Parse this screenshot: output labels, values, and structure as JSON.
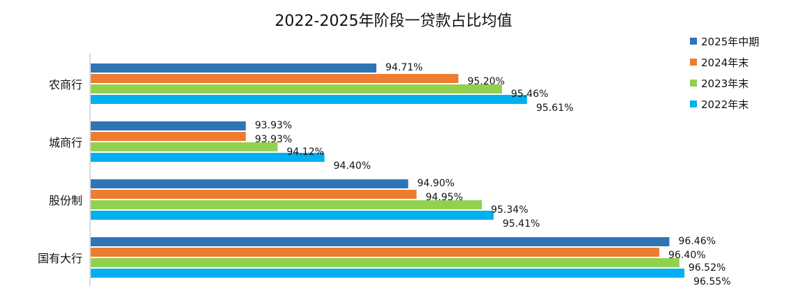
{
  "chart_data": {
    "type": "bar",
    "orientation": "horizontal",
    "title": "2022-2025年阶段一贷款占比均值",
    "xlabel": "",
    "ylabel": "",
    "xlim": [
      93.0,
      97.0
    ],
    "grid": false,
    "legend_position": "top-right",
    "categories": [
      "农商行",
      "城商行",
      "股份制",
      "国有大行"
    ],
    "series": [
      {
        "name": "2025年中期",
        "color": "#2E75B6",
        "values": [
          94.71,
          93.93,
          94.9,
          96.46
        ],
        "labels": [
          "94.71%",
          "93.93%",
          "94.90%",
          "96.46%"
        ]
      },
      {
        "name": "2024年末",
        "color": "#ED7D31",
        "values": [
          95.2,
          93.93,
          94.95,
          96.4
        ],
        "labels": [
          "95.20%",
          "93.93%",
          "94.95%",
          "96.40%"
        ]
      },
      {
        "name": "2023年末",
        "color": "#92D050",
        "values": [
          95.46,
          94.12,
          95.34,
          96.52
        ],
        "labels": [
          "95.46%",
          "94.12%",
          "95.34%",
          "96.52%"
        ]
      },
      {
        "name": "2022年末",
        "color": "#00B0F0",
        "values": [
          95.61,
          94.4,
          95.41,
          96.55
        ],
        "labels": [
          "95.61%",
          "94.40%",
          "95.41%",
          "96.55%"
        ]
      }
    ]
  }
}
